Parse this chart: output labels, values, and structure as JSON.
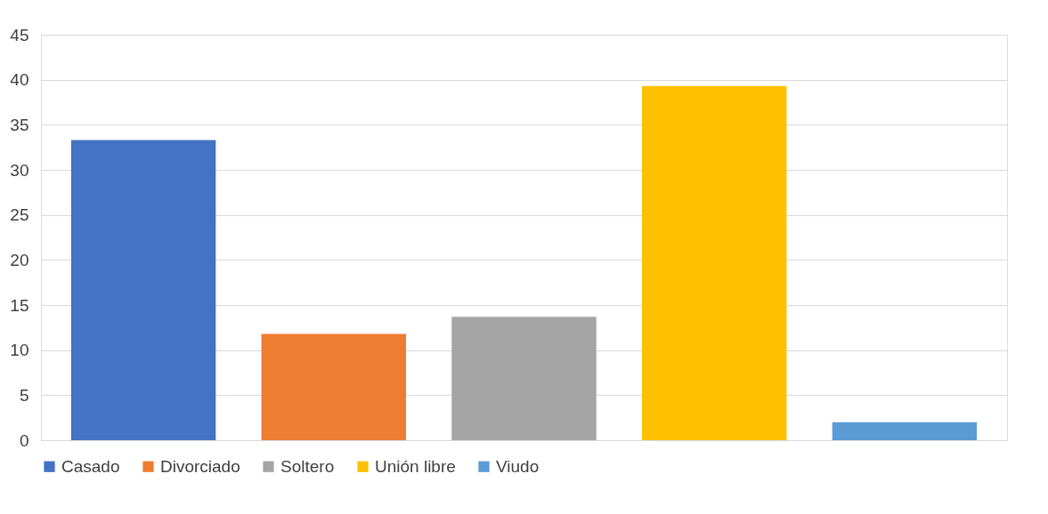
{
  "chart_data": {
    "type": "bar",
    "categories": [
      null
    ],
    "series": [
      {
        "name": "Casado",
        "color": "#4472c4",
        "values": [
          33.3
        ]
      },
      {
        "name": "Divorciado",
        "color": "#ed7d31",
        "values": [
          11.8
        ]
      },
      {
        "name": "Soltero",
        "color": "#a5a5a5",
        "values": [
          13.7
        ]
      },
      {
        "name": "Unión libre",
        "color": "#ffc000",
        "values": [
          39.3
        ]
      },
      {
        "name": "Viudo",
        "color": "#5b9bd5",
        "values": [
          2.0
        ]
      }
    ],
    "ylim": [
      0,
      45
    ],
    "yticks": [
      0,
      5,
      10,
      15,
      20,
      25,
      30,
      35,
      40,
      45
    ],
    "grid": "y",
    "legend": "bottom"
  }
}
